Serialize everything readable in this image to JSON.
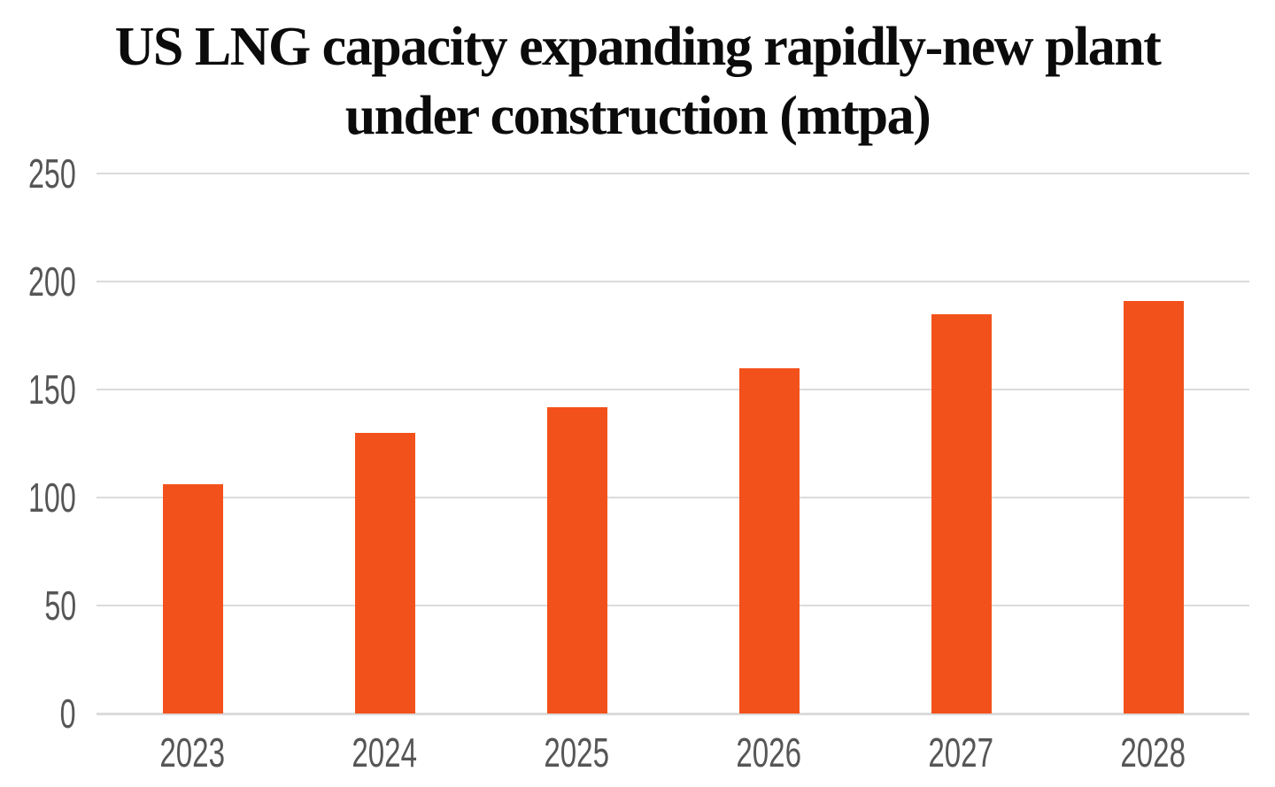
{
  "header": {
    "title_line1": "US LNG capacity expanding rapidly-new plant",
    "title_line2": "under construction (mtpa)"
  },
  "chart_data": {
    "type": "bar",
    "title": "US LNG capacity expanding rapidly-new plant under construction (mtpa)",
    "unit": "mtpa",
    "categories": [
      "2023",
      "2024",
      "2025",
      "2026",
      "2027",
      "2028"
    ],
    "values": [
      106,
      130,
      142,
      160,
      185,
      191
    ],
    "xlabel": "",
    "ylabel": "",
    "ylim": [
      0,
      250
    ],
    "yticks": [
      0,
      50,
      100,
      150,
      200,
      250
    ],
    "grid": "horizontal",
    "legend": "none",
    "colors": {
      "bar": "#F3511B",
      "gridline": "#DBDBDB",
      "tick_label": "#565656",
      "title": "#0B0B0B",
      "background": "#FFFFFF"
    }
  }
}
